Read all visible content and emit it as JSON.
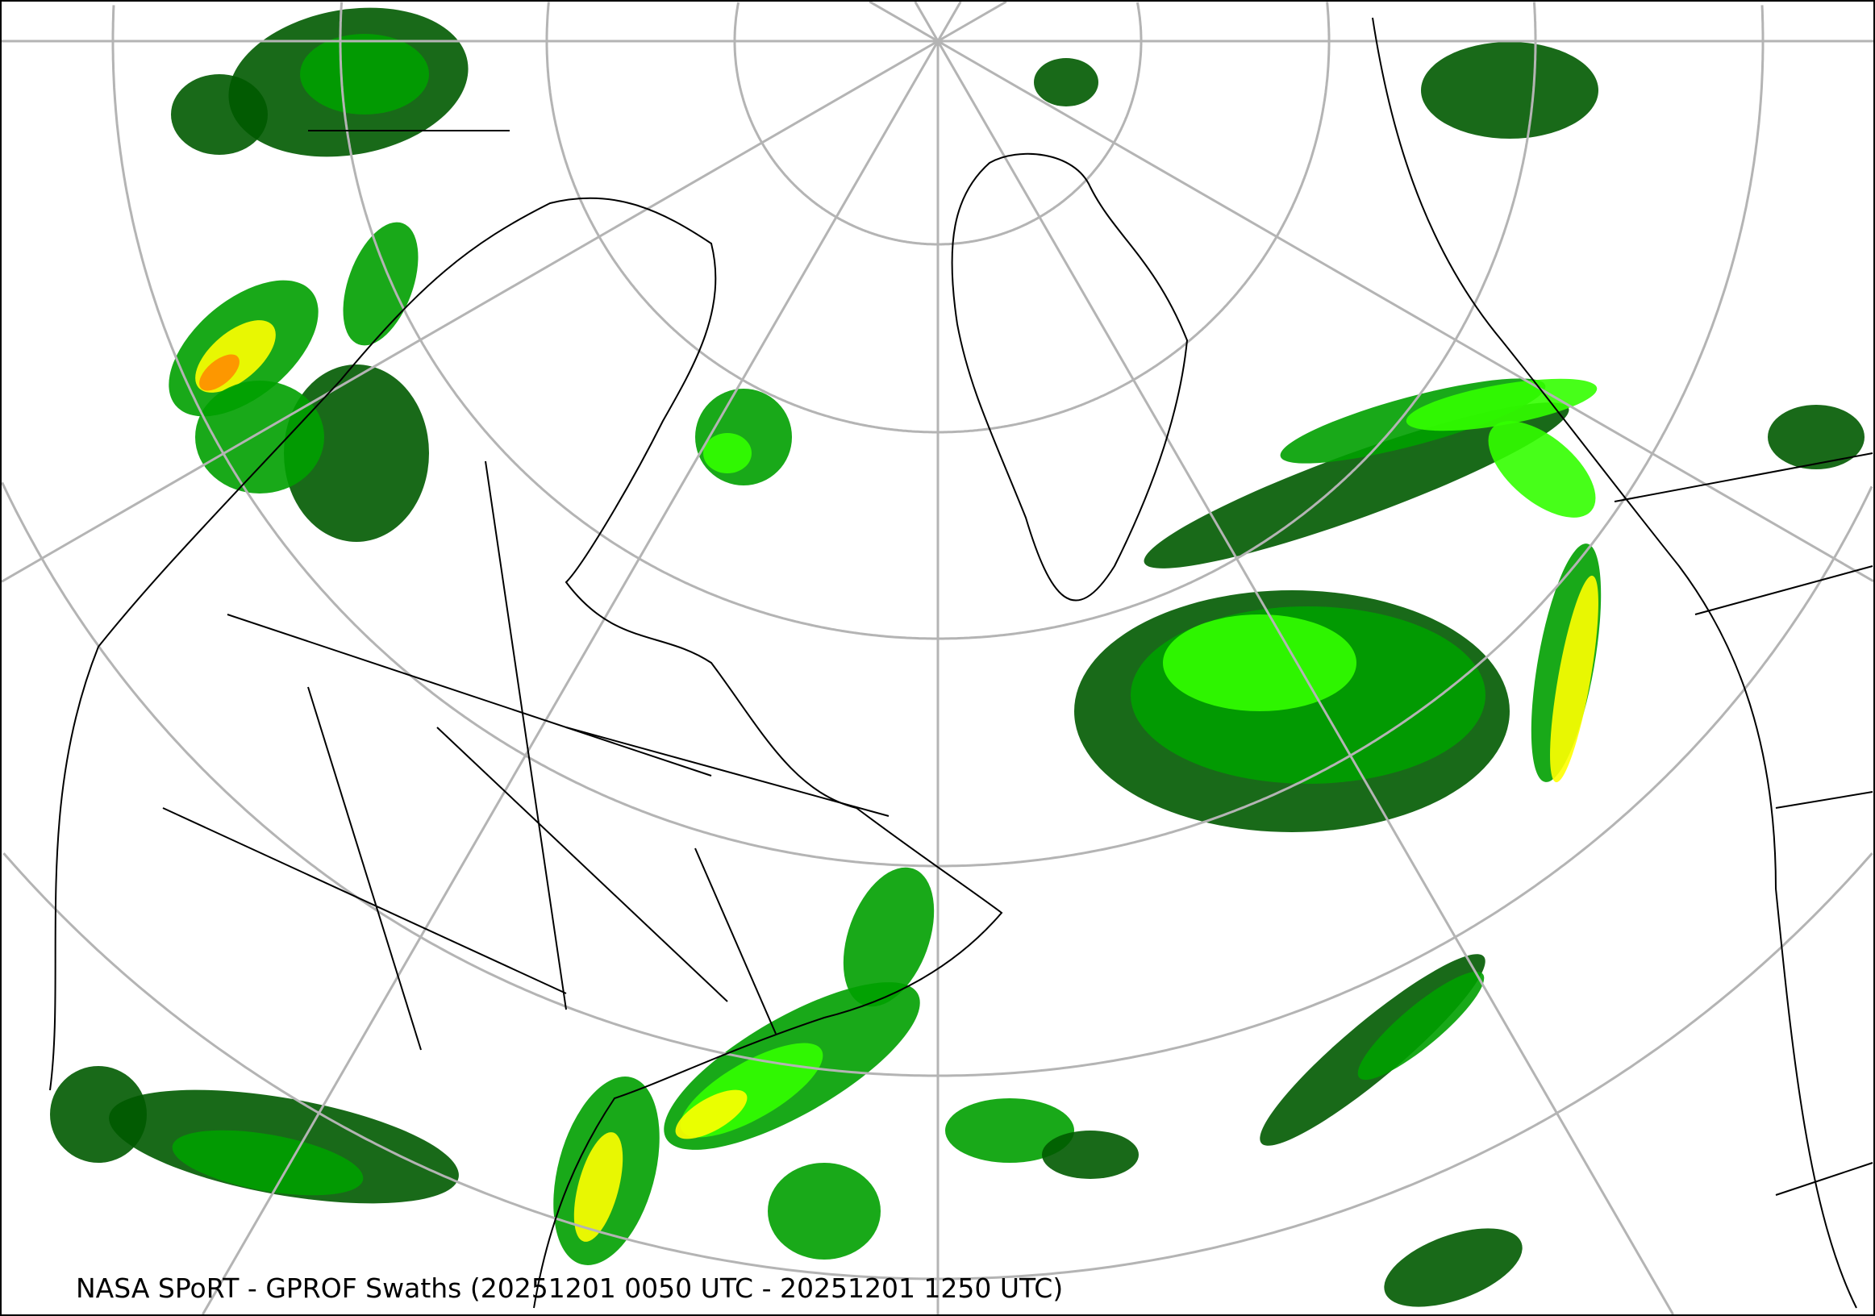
{
  "caption": "NASA SPoRT - GPROF Swaths (20251201 0050 UTC - 20251201 1250 UTC)",
  "colors": {
    "graticule": "#b4b4b4",
    "coastline": "#000000",
    "precip_light": "#005a00",
    "precip_moderate": "#00a000",
    "precip_bright": "#33ff00",
    "precip_heavy": "#ffff00",
    "precip_intense": "#ff8c00",
    "precip_extreme": "#e00000"
  },
  "projection": "north-polar-stereographic"
}
